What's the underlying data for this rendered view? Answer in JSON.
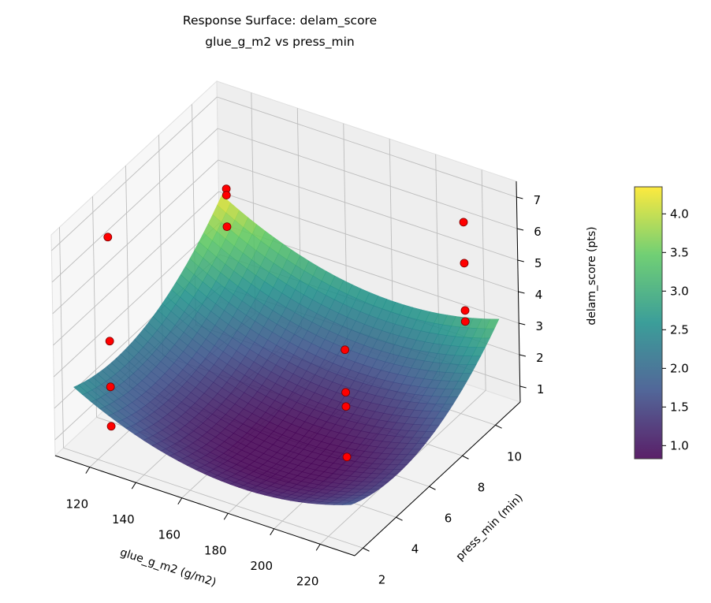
{
  "chart_data": {
    "type": "surface3d",
    "title": "Response Surface: delam_score",
    "subtitle": "glue_g_m2 vs press_min",
    "xlabel": "glue_g_m2 (g/m2)",
    "ylabel": "press_min (min)",
    "zlabel": "delam_score (pts)",
    "xlim": [
      105,
      235
    ],
    "ylim": [
      1.5,
      11.5
    ],
    "zlim": [
      0.5,
      7.5
    ],
    "xticks": [
      120,
      140,
      160,
      180,
      200,
      220
    ],
    "yticks": [
      2,
      4,
      6,
      8,
      10
    ],
    "zticks": [
      1,
      2,
      3,
      4,
      5,
      6,
      7
    ],
    "colormap": "viridis",
    "colorbar": {
      "label": "delam_score (pts)",
      "range": [
        0.83,
        4.35
      ],
      "ticks": [
        "1.0",
        "1.5",
        "2.0",
        "2.5",
        "3.0",
        "3.5",
        "4.0"
      ]
    },
    "grid": true,
    "surface_model": {
      "x_range": [
        110,
        230
      ],
      "y_range": [
        2,
        11
      ],
      "fit": "quadratic",
      "min": 0.85,
      "max": 4.3
    },
    "points_color": "#ff0000",
    "points": [
      {
        "x": 115,
        "y": 3.5,
        "z": 0.7
      },
      {
        "x": 115,
        "y": 3.5,
        "z": 1.95
      },
      {
        "x": 115,
        "y": 3.5,
        "z": 3.4
      },
      {
        "x": 115,
        "y": 3.5,
        "z": 6.7
      },
      {
        "x": 112,
        "y": 11,
        "z": 4.5
      },
      {
        "x": 112,
        "y": 11,
        "z": 4.3
      },
      {
        "x": 112,
        "y": 11,
        "z": 3.3
      },
      {
        "x": 225,
        "y": 2.5,
        "z": 2.9
      },
      {
        "x": 225,
        "y": 2.5,
        "z": 4.5
      },
      {
        "x": 225,
        "y": 2.5,
        "z": 4.95
      },
      {
        "x": 225,
        "y": 2.5,
        "z": 6.3
      },
      {
        "x": 230,
        "y": 9,
        "z": 4.15
      },
      {
        "x": 230,
        "y": 9,
        "z": 4.5
      },
      {
        "x": 230,
        "y": 9,
        "z": 6.0
      },
      {
        "x": 230,
        "y": 9,
        "z": 7.3
      }
    ]
  }
}
